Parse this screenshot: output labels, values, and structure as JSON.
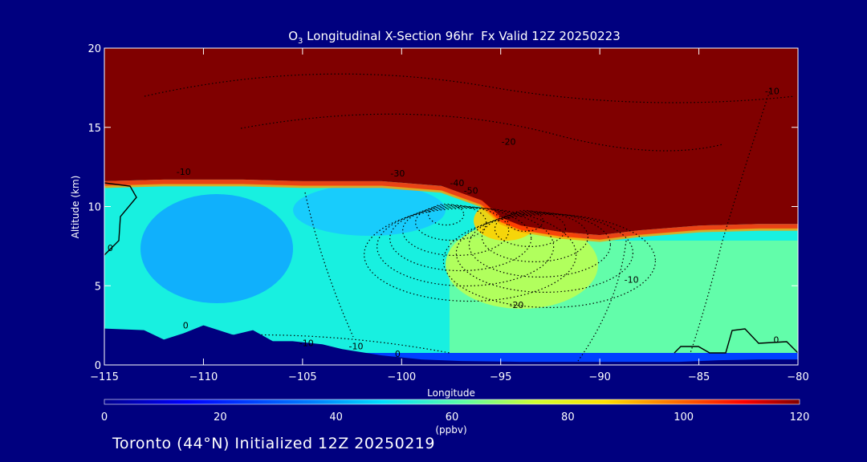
{
  "chart_data": {
    "type": "heatmap",
    "title_prefix": "O",
    "title_sub": "3",
    "title_rest": " Longitudinal X-Section 96hr  Fx Valid 12Z 20250223",
    "xlabel": "Longitude",
    "ylabel": "Altitude (km)",
    "xlim": [
      -115,
      -80
    ],
    "ylim": [
      0,
      20
    ],
    "xticks": [
      -115,
      -110,
      -105,
      -100,
      -95,
      -90,
      -85,
      -80
    ],
    "xtick_labels": [
      "−115",
      "−110",
      "−105",
      "−100",
      "−95",
      "−90",
      "−85",
      "−80"
    ],
    "yticks": [
      0,
      5,
      10,
      15,
      20
    ],
    "ytick_labels": [
      "0",
      "5",
      "10",
      "15",
      "20"
    ],
    "colorbar": {
      "range": [
        0,
        120
      ],
      "ticks": [
        0,
        20,
        40,
        60,
        80,
        100,
        120
      ],
      "tick_labels": [
        "0",
        "20",
        "40",
        "60",
        "80",
        "100",
        "120"
      ],
      "units": "(ppbv)"
    },
    "tropopause_km": [
      [
        -115,
        11.6
      ],
      [
        -112,
        11.7
      ],
      [
        -108,
        11.7
      ],
      [
        -105,
        11.6
      ],
      [
        -101,
        11.6
      ],
      [
        -98,
        11.3
      ],
      [
        -96,
        10.4
      ],
      [
        -95,
        9.3
      ],
      [
        -94,
        8.8
      ],
      [
        -92,
        8.4
      ],
      [
        -90,
        8.2
      ],
      [
        -88,
        8.5
      ],
      [
        -85,
        8.8
      ],
      [
        -82,
        8.9
      ],
      [
        -80,
        8.9
      ]
    ],
    "terrain_km": [
      [
        -115,
        2.3
      ],
      [
        -113,
        2.2
      ],
      [
        -112,
        1.6
      ],
      [
        -111,
        2.0
      ],
      [
        -110,
        2.5
      ],
      [
        -108.5,
        1.9
      ],
      [
        -107.5,
        2.2
      ],
      [
        -106.5,
        1.5
      ],
      [
        -105.5,
        1.5
      ],
      [
        -104,
        1.3
      ],
      [
        -103,
        1.0
      ],
      [
        -101,
        0.6
      ],
      [
        -99,
        0.35
      ],
      [
        -97,
        0.25
      ],
      [
        -94,
        0.2
      ],
      [
        -90,
        0.2
      ],
      [
        -86,
        0.2
      ],
      [
        -84,
        0.3
      ],
      [
        -82,
        0.35
      ],
      [
        -80,
        0.35
      ]
    ],
    "contour_labels": [
      {
        "text": "-10",
        "lon": -111,
        "alt": 12.0
      },
      {
        "text": "-10",
        "lon": -81.3,
        "alt": 17.1
      },
      {
        "text": "-20",
        "lon": -94.6,
        "alt": 13.9
      },
      {
        "text": "-30",
        "lon": -100.2,
        "alt": 11.9
      },
      {
        "text": "-40",
        "lon": -97.2,
        "alt": 11.3
      },
      {
        "text": "-50",
        "lon": -96.5,
        "alt": 10.8
      },
      {
        "text": "-20",
        "lon": -94.2,
        "alt": 3.6
      },
      {
        "text": "-10",
        "lon": -88.4,
        "alt": 5.2
      },
      {
        "text": "0",
        "lon": -110.9,
        "alt": 2.3
      },
      {
        "text": "0",
        "lon": -114.7,
        "alt": 7.2
      },
      {
        "text": "0",
        "lon": -81.1,
        "alt": 1.4
      },
      {
        "text": "-10",
        "lon": -104.8,
        "alt": 1.2
      },
      {
        "text": "-10",
        "lon": -102.3,
        "alt": 1.0
      },
      {
        "text": "0",
        "lon": -100.2,
        "alt": 0.5
      }
    ],
    "dotted_contour_centers": [
      {
        "lon": -98,
        "alt": 10.0
      },
      {
        "lon": -94,
        "alt": 9.6
      }
    ]
  },
  "footer": "Toronto (44°N) Initialized 12Z 20250219"
}
